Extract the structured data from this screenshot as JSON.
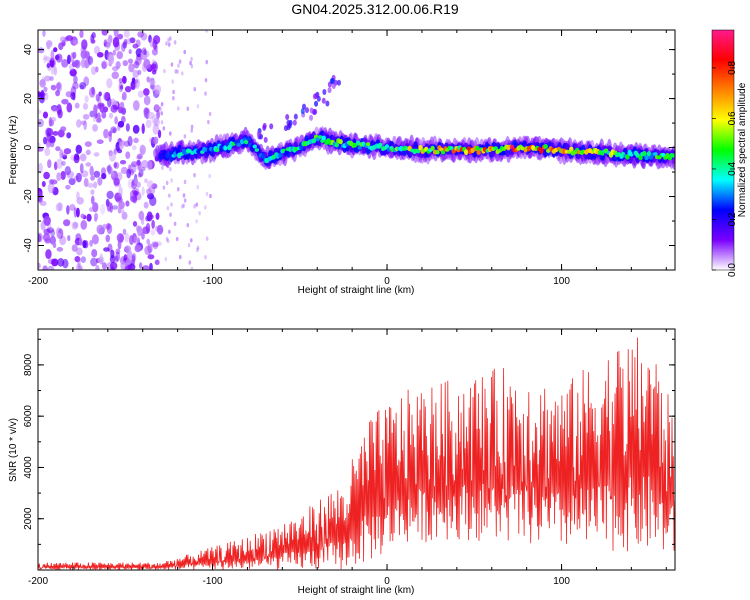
{
  "title": "GN04.2025.312.00.06.R19",
  "chart_data": [
    {
      "type": "heatmap",
      "xlabel": "Height of straight line (km)",
      "ylabel": "Frequency (Hz)",
      "xlim": [
        -200,
        165
      ],
      "ylim": [
        -50,
        48
      ],
      "xticks": [
        -200,
        -100,
        0,
        100
      ],
      "yticks": [
        -40,
        -20,
        0,
        20,
        40
      ],
      "colorbar": {
        "label": "Normalized spectral amplitude",
        "range": [
          0,
          0.95
        ],
        "ticks": [
          "0.0",
          "0.2",
          "0.4",
          "0.6",
          "0.8"
        ],
        "colormap": [
          "#ffffff",
          "#7a00ff",
          "#0000ff",
          "#00ffff",
          "#00ff00",
          "#ffff00",
          "#ff8000",
          "#ff0000",
          "#ff1a8c"
        ]
      },
      "noise_region_x": [
        -200,
        -130
      ],
      "band": [
        {
          "x": -130,
          "f": -3,
          "a": 0.35
        },
        {
          "x": -110,
          "f": -2,
          "a": 0.4
        },
        {
          "x": -95,
          "f": 0,
          "a": 0.45
        },
        {
          "x": -80,
          "f": 3,
          "a": 0.4
        },
        {
          "x": -70,
          "f": -5,
          "a": 0.4
        },
        {
          "x": -55,
          "f": -1,
          "a": 0.45
        },
        {
          "x": -40,
          "f": 4,
          "a": 0.5
        },
        {
          "x": -30,
          "f": 2,
          "a": 0.5
        },
        {
          "x": -20,
          "f": 1,
          "a": 0.55
        },
        {
          "x": 0,
          "f": 0,
          "a": 0.55
        },
        {
          "x": 20,
          "f": -1,
          "a": 0.65
        },
        {
          "x": 40,
          "f": -1,
          "a": 0.75
        },
        {
          "x": 60,
          "f": -1,
          "a": 0.8
        },
        {
          "x": 80,
          "f": 0,
          "a": 0.9
        },
        {
          "x": 100,
          "f": -1,
          "a": 0.75
        },
        {
          "x": 120,
          "f": -2,
          "a": 0.6
        },
        {
          "x": 140,
          "f": -3,
          "a": 0.5
        },
        {
          "x": 165,
          "f": -4,
          "a": 0.45
        }
      ],
      "spur": [
        {
          "x": -70,
          "f": 6
        },
        {
          "x": -55,
          "f": 10
        },
        {
          "x": -45,
          "f": 15
        },
        {
          "x": -38,
          "f": 20
        },
        {
          "x": -30,
          "f": 26
        }
      ]
    },
    {
      "type": "line",
      "xlabel": "Height of straight line (km)",
      "ylabel": "SNR (10 * v/v)",
      "xlim": [
        -200,
        165
      ],
      "ylim": [
        0,
        9400
      ],
      "xticks": [
        -200,
        -100,
        0,
        100
      ],
      "yticks": [
        2000,
        4000,
        6000,
        8000
      ],
      "color": "#ee2222",
      "envelope": [
        {
          "x": -200,
          "lo": 0,
          "hi": 300
        },
        {
          "x": -130,
          "lo": 0,
          "hi": 300
        },
        {
          "x": -110,
          "lo": 0,
          "hi": 700
        },
        {
          "x": -80,
          "lo": 0,
          "hi": 1300
        },
        {
          "x": -50,
          "lo": 0,
          "hi": 2200
        },
        {
          "x": -25,
          "lo": 0,
          "hi": 3500
        },
        {
          "x": -10,
          "lo": 300,
          "hi": 6000
        },
        {
          "x": 10,
          "lo": 1000,
          "hi": 7000
        },
        {
          "x": 40,
          "lo": 1200,
          "hi": 7500
        },
        {
          "x": 70,
          "lo": 1000,
          "hi": 8000
        },
        {
          "x": 100,
          "lo": 800,
          "hi": 7200
        },
        {
          "x": 130,
          "lo": 700,
          "hi": 8800
        },
        {
          "x": 150,
          "lo": 700,
          "hi": 9300
        },
        {
          "x": 165,
          "lo": 500,
          "hi": 6000
        }
      ]
    }
  ]
}
